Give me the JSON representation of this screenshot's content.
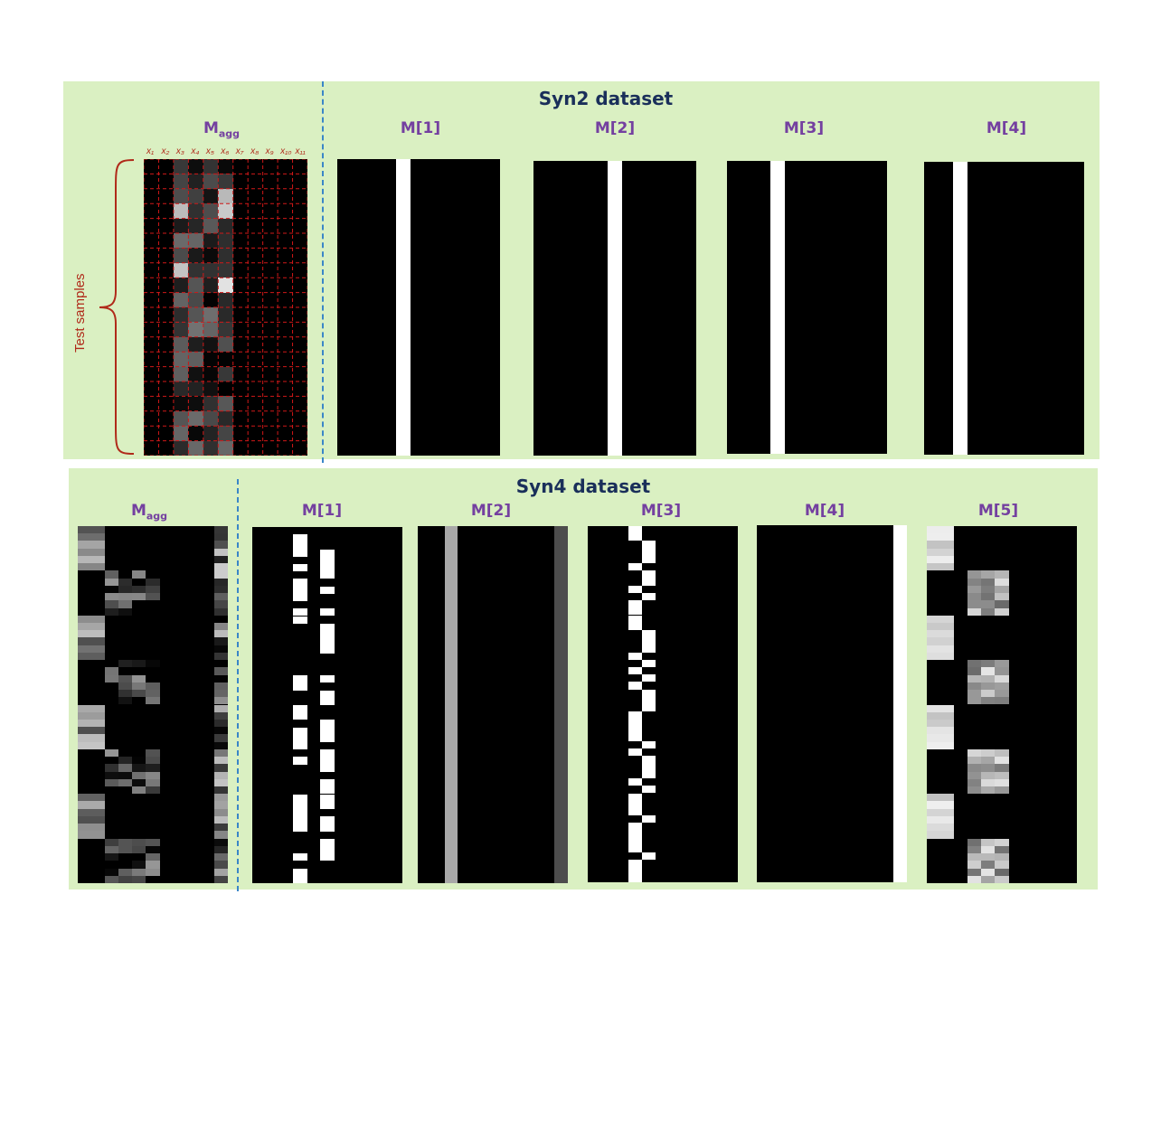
{
  "top": {
    "title": "Syn2 dataset",
    "magg_label": "M",
    "magg_sub": "agg",
    "ylabel": "Test samples",
    "features": [
      "x₁",
      "x₂",
      "x₃",
      "x₄",
      "x₅",
      "x₆",
      "x₇",
      "x₈",
      "x₉",
      "x₁₀",
      "x₁₁"
    ],
    "panels": [
      "M[1]",
      "M[2]",
      "M[3]",
      "M[4]"
    ]
  },
  "bottom": {
    "title": "Syn4 dataset",
    "magg_label": "M",
    "magg_sub": "agg",
    "panels": [
      "M[1]",
      "M[2]",
      "M[3]",
      "M[4]",
      "M[5]"
    ]
  },
  "colors": {
    "panel_bg": "#daf0c2",
    "title": "#1a2f5a",
    "label": "#7440a0",
    "separator": "#3a86c8",
    "grid": "#d01818"
  }
}
